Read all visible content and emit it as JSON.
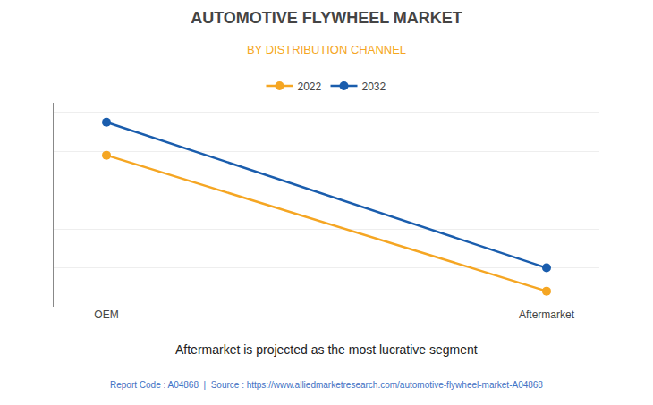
{
  "chart_data": {
    "type": "line",
    "title": "AUTOMOTIVE FLYWHEEL MARKET",
    "subtitle": "BY DISTRIBUTION CHANNEL",
    "categories": [
      "OEM",
      "Aftermarket"
    ],
    "series": [
      {
        "name": "2022",
        "color": "#F5A623",
        "values": [
          0.78,
          0.08
        ]
      },
      {
        "name": "2032",
        "color": "#1A5DAD",
        "values": [
          0.95,
          0.2
        ]
      }
    ],
    "ylim": [
      0.0,
      1.05
    ],
    "yticks": [
      0,
      0.2,
      0.4,
      0.6,
      0.8,
      1.0
    ],
    "grid": true,
    "tick_labels": "x",
    "legend": "top",
    "marker": "circle",
    "line_style": "solid",
    "annotations": [
      "Aftermarket is projected as the most lucrative segment",
      "Report Code : A04868  |  Source : https://www.alliedmarketresearch.com/automotive-flywheel-market-A04868"
    ]
  }
}
